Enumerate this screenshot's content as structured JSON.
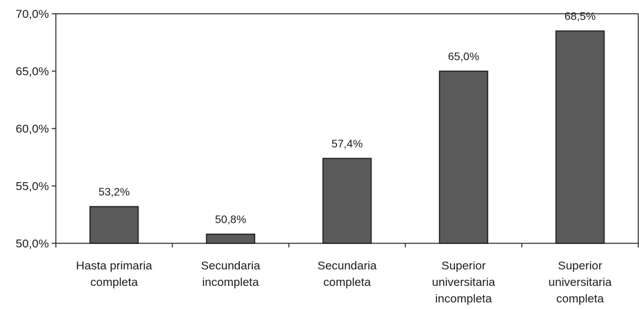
{
  "colors": {
    "bar_fill": "#5a5a5a",
    "bar_stroke": "#1a1a1a",
    "axis": "#333333",
    "text": "#1a1a1a"
  },
  "chart_data": {
    "type": "bar",
    "categories": [
      [
        "Hasta primaria",
        "completa"
      ],
      [
        "Secundaria",
        "incompleta"
      ],
      [
        "Secundaria",
        "completa"
      ],
      [
        "Superior",
        "universitaria",
        "incompleta"
      ],
      [
        "Superior",
        "universitaria",
        "completa"
      ]
    ],
    "values": [
      53.2,
      50.8,
      57.4,
      65.0,
      68.5
    ],
    "data_labels": [
      "53,2%",
      "50,8%",
      "57,4%",
      "65,0%",
      "68,5%"
    ],
    "ylim": [
      50,
      70
    ],
    "yticks": [
      50,
      55,
      60,
      65,
      70
    ],
    "ytick_labels": [
      "50,0%",
      "55,0%",
      "60,0%",
      "65,0%",
      "70,0%"
    ],
    "grid": false,
    "title": "",
    "xlabel": "",
    "ylabel": ""
  }
}
